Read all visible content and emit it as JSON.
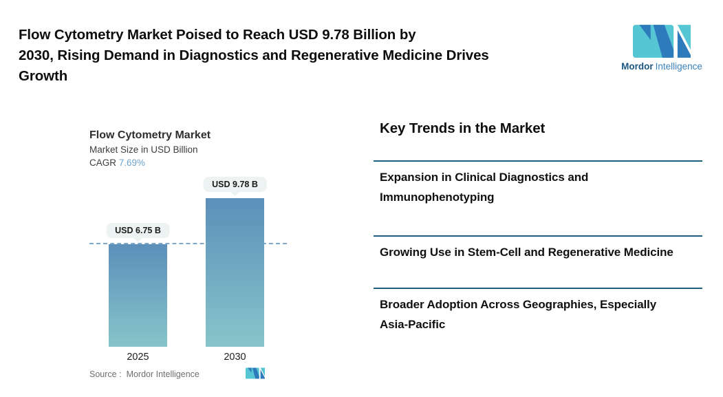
{
  "header": {
    "title_lines": [
      "Flow Cytometry Market Poised to Reach USD 9.78 Billion by",
      "2030, Rising Demand in Diagnostics and Regenerative Medicine Drives",
      "Growth"
    ]
  },
  "brand": {
    "name_bold": "Mordor",
    "name_light": "Intelligence"
  },
  "chart": {
    "title": "Flow Cytometry Market",
    "subtitle": "Market Size in USD Billion",
    "cagr_label": "CAGR",
    "cagr_value": "7.69%",
    "source_label": "Source :",
    "source_value": "Mordor Intelligence"
  },
  "chart_data": {
    "type": "bar",
    "title": "Flow Cytometry Market",
    "ylabel": "Market Size in USD Billion",
    "categories": [
      "2025",
      "2030"
    ],
    "values": [
      6.75,
      9.78
    ],
    "value_labels": [
      "USD 6.75 B",
      "USD 9.78 B"
    ],
    "cagr_percent": 7.69,
    "reference_line": 6.75,
    "ylim": [
      0,
      9.78
    ],
    "grid": false,
    "legend": false
  },
  "trends": {
    "heading": "Key Trends in the Market",
    "items": [
      "Expansion in Clinical Diagnostics and Immunophenotyping",
      "Growing Use in Stem-Cell and Regenerative Medicine",
      "Broader Adoption Across Geographies, Especially Asia-Pacific"
    ]
  },
  "colors": {
    "accent_teal": "#56C5D4",
    "accent_blue": "#2E7BBB",
    "brand_text_dark": "#1A5881",
    "brand_text_light": "#3A82BB",
    "separator": "#1E5E7E",
    "bar_gradient_top": "#5C8FBA",
    "bar_gradient_bottom": "#86C5CA",
    "cagr_value_text": "#6FA3CC",
    "dashed_line": "#7FA9CC",
    "label_pill_bg": "#EDF2F2"
  }
}
